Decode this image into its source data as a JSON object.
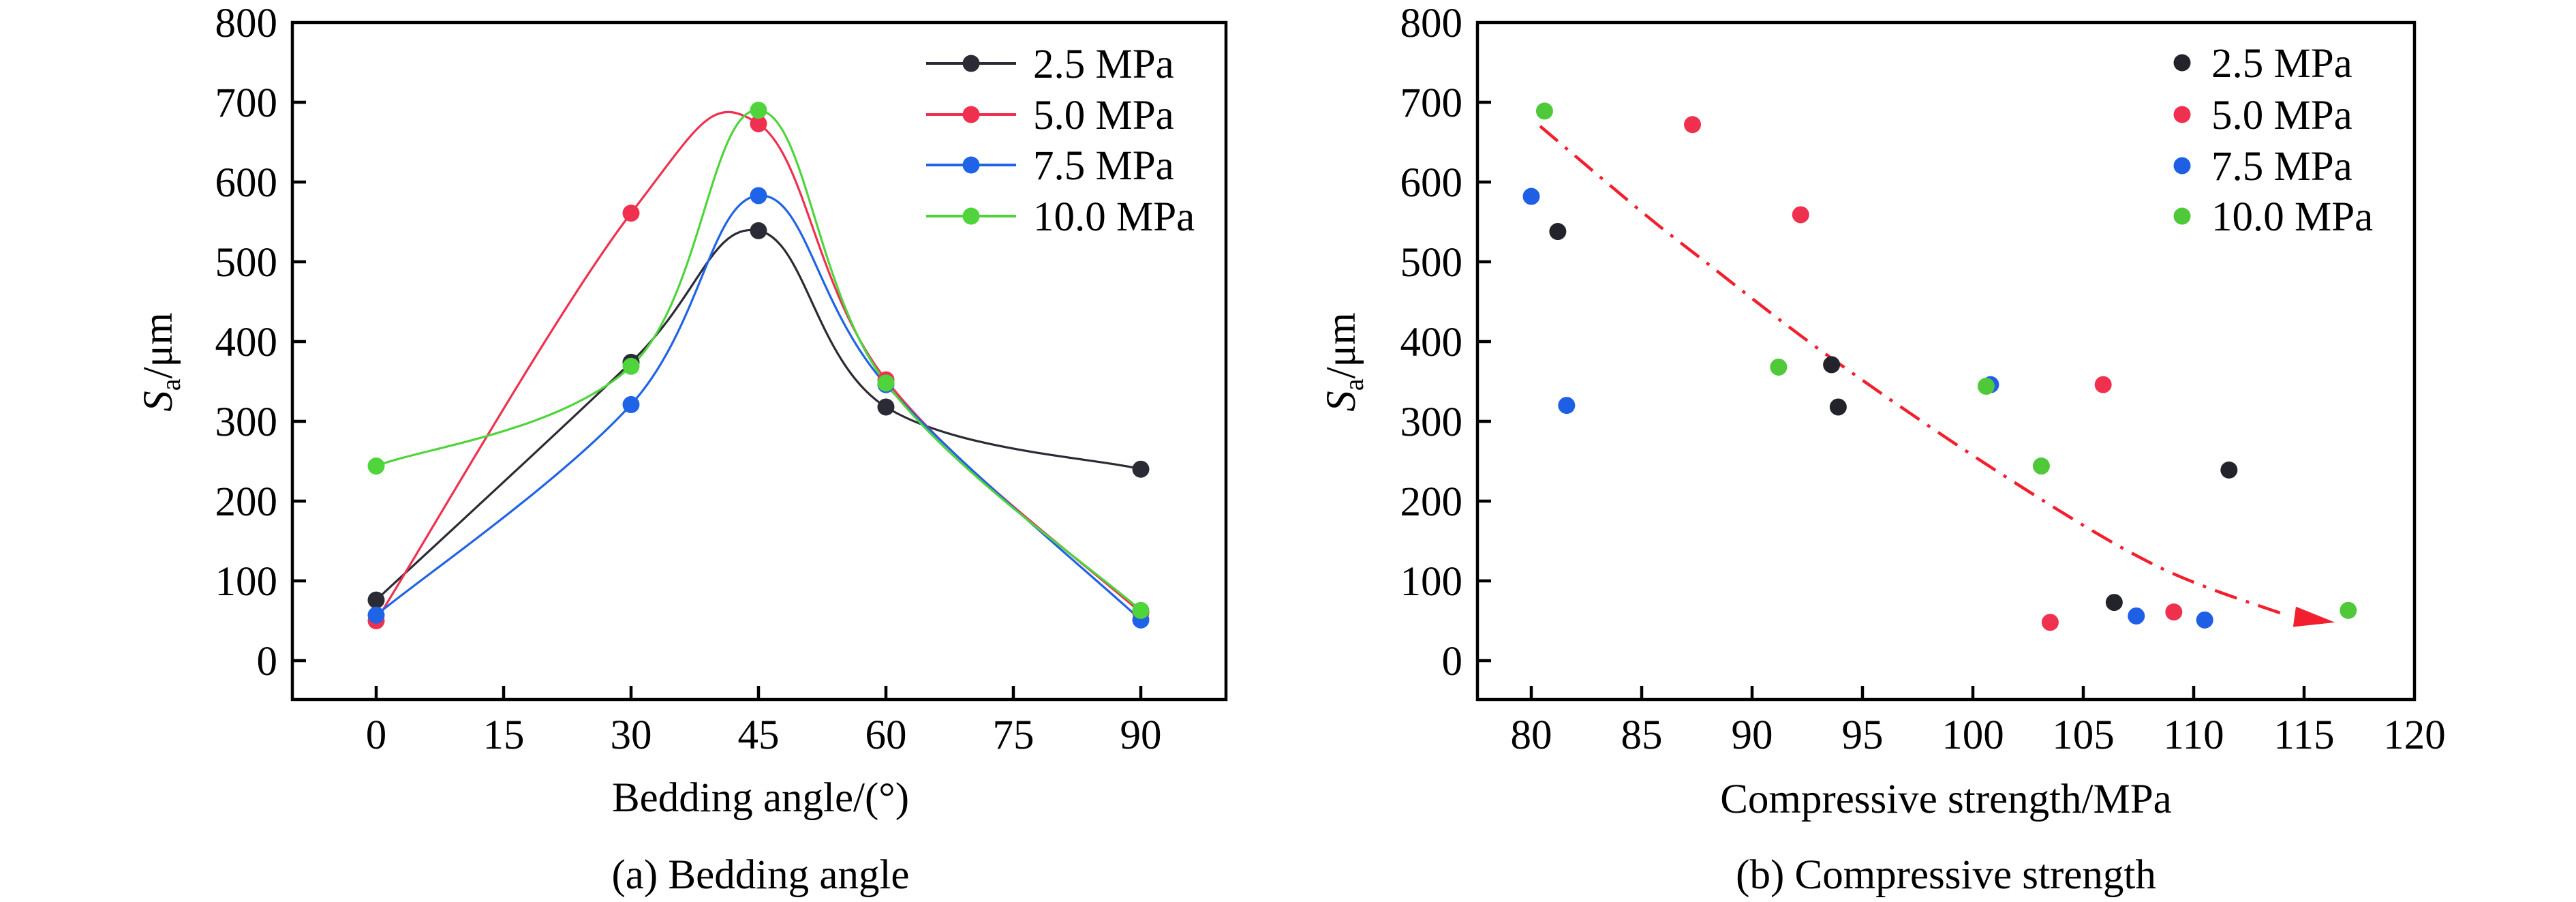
{
  "figure": {
    "panels": [
      "bedding_angle",
      "compressive_strength"
    ]
  },
  "chart_data": [
    {
      "id": "bedding_angle",
      "type": "line",
      "title": "",
      "caption": "(a) Bedding angle",
      "xlabel": "Bedding angle/(°)",
      "ylabel_main": "S",
      "ylabel_sub": "a",
      "ylabel_unit": "/μm",
      "xlim": [
        -7,
        103
      ],
      "ylim": [
        -50,
        800
      ],
      "xticks": [
        0,
        15,
        30,
        45,
        60,
        75,
        90
      ],
      "yticks": [
        0,
        100,
        200,
        300,
        400,
        500,
        600,
        700,
        800
      ],
      "grid": false,
      "smooth": true,
      "legend": "top-right",
      "x": [
        0,
        30,
        45,
        60,
        90
      ],
      "series": [
        {
          "name": "2.5 MPa",
          "color": "#2b2b35",
          "values": [
            76,
            374,
            539,
            318,
            240
          ]
        },
        {
          "name": "5.0 MPa",
          "color": "#f0304f",
          "values": [
            50,
            561,
            673,
            352,
            60
          ]
        },
        {
          "name": "7.5 MPa",
          "color": "#1f63e6",
          "values": [
            57,
            321,
            583,
            346,
            51
          ]
        },
        {
          "name": "10.0 MPa",
          "color": "#4fd43c",
          "values": [
            244,
            369,
            690,
            348,
            63
          ]
        }
      ]
    },
    {
      "id": "compressive_strength",
      "type": "scatter",
      "title": "",
      "caption": "(b) Compressive strength",
      "xlabel": "Compressive strength/MPa",
      "ylabel_main": "S",
      "ylabel_sub": "a",
      "ylabel_unit": "/μm",
      "xlim": [
        77.5,
        120
      ],
      "ylim": [
        -50,
        800
      ],
      "xticks": [
        80,
        85,
        90,
        95,
        100,
        105,
        110,
        115,
        120
      ],
      "yticks": [
        0,
        100,
        200,
        300,
        400,
        500,
        600,
        700,
        800
      ],
      "grid": false,
      "legend": "top-right",
      "series": [
        {
          "name": "2.5 MPa",
          "color": "#23232b",
          "points": [
            [
              81.2,
              538
            ],
            [
              93.6,
              371
            ],
            [
              93.9,
              318
            ],
            [
              106.4,
              73
            ],
            [
              111.6,
              239
            ]
          ]
        },
        {
          "name": "5.0 MPa",
          "color": "#f0304f",
          "points": [
            [
              87.3,
              672
            ],
            [
              92.2,
              559
            ],
            [
              103.5,
              48
            ],
            [
              105.9,
              346
            ],
            [
              109.1,
              61
            ]
          ]
        },
        {
          "name": "7.5 MPa",
          "color": "#1f5fe6",
          "points": [
            [
              80.0,
              582
            ],
            [
              81.6,
              320
            ],
            [
              100.8,
              346
            ],
            [
              107.4,
              56
            ],
            [
              110.5,
              51
            ]
          ]
        },
        {
          "name": "10.0 MPa",
          "color": "#4fc83a",
          "points": [
            [
              80.6,
              689
            ],
            [
              91.2,
              368
            ],
            [
              100.6,
              344
            ],
            [
              103.1,
              244
            ],
            [
              117.0,
              63
            ]
          ]
        }
      ],
      "annotations": [
        {
          "type": "trend-arrow",
          "style": "dash-dot",
          "color": "#f2202e",
          "points": [
            [
              80.4,
              670
            ],
            [
              84.9,
              565
            ],
            [
              87.6,
              506
            ],
            [
              93.5,
              381
            ],
            [
              101.4,
              232
            ],
            [
              108.3,
              119
            ],
            [
              114.3,
              56
            ],
            [
              116.4,
              48
            ]
          ]
        }
      ]
    }
  ]
}
